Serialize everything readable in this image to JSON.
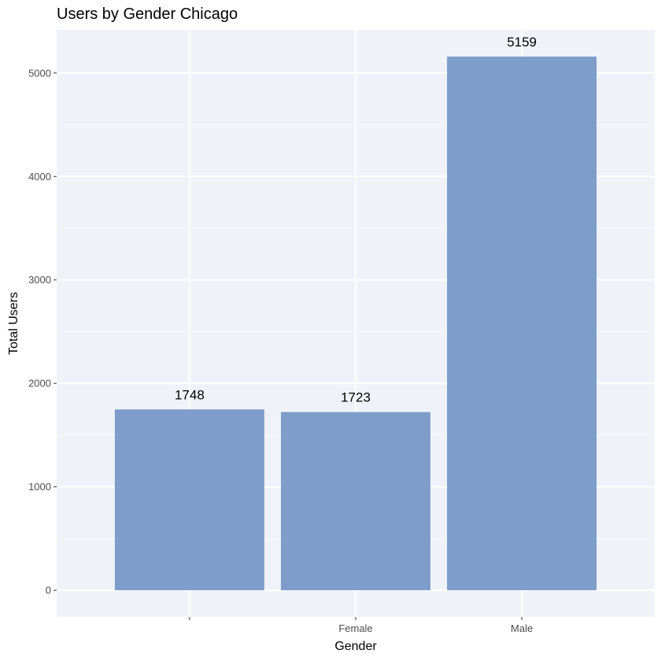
{
  "colors": {
    "panel_background": "#eff3f9",
    "grid_major": "#ffffff",
    "grid_minor": "#f7f9fc",
    "bar_fill": "#7e9dcb",
    "tick_mark": "#333333"
  },
  "chart_data": {
    "type": "bar",
    "title": "Users by Gender Chicago",
    "xlabel": "Gender",
    "ylabel": "Total Users",
    "categories": [
      "",
      "Female",
      "Male"
    ],
    "values": [
      1748,
      1723,
      5159
    ],
    "data_labels": [
      "1748",
      "1723",
      "5159"
    ],
    "y_ticks": [
      0,
      1000,
      2000,
      3000,
      4000,
      5000
    ],
    "y_tick_labels": [
      "0",
      "1000",
      "2000",
      "3000",
      "4000",
      "5000"
    ],
    "ylim": [
      -258,
      5417
    ],
    "grid": true,
    "legend": "none"
  }
}
